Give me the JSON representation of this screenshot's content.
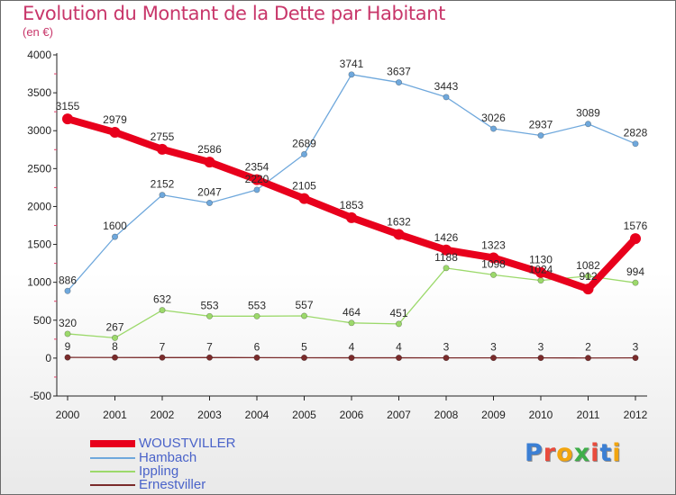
{
  "title": "Evolution du Montant de la Dette par Habitant",
  "subtitle": "(en €)",
  "logo": {
    "text": "Proxiti",
    "letters": [
      "P",
      "r",
      "o",
      "x",
      "i",
      "t",
      "i"
    ],
    "colors": [
      "#3b7fd4",
      "#e94b3c",
      "#f2a50f",
      "#3fae49",
      "#e94b3c",
      "#3b7fd4",
      "#f2a50f"
    ]
  },
  "chart_data": {
    "type": "line",
    "x": [
      "2000",
      "2001",
      "2002",
      "2003",
      "2004",
      "2005",
      "2006",
      "2007",
      "2008",
      "2009",
      "2010",
      "2011",
      "2012"
    ],
    "ylim": [
      -500,
      4000
    ],
    "yticks": [
      -500,
      0,
      500,
      1000,
      1500,
      2000,
      2500,
      3000,
      3500,
      4000
    ],
    "grid": false,
    "legend_position": "bottom-left",
    "series": [
      {
        "name": "WOUSTVILLER",
        "color": "#e8001c",
        "values": [
          3155,
          2979,
          2755,
          2586,
          2354,
          2105,
          1853,
          1632,
          1426,
          1323,
          1130,
          912,
          1576
        ]
      },
      {
        "name": "Hambach",
        "color": "#6fa8dc",
        "values": [
          886,
          1600,
          2152,
          2047,
          2220,
          2689,
          3741,
          3637,
          3443,
          3026,
          2937,
          3089,
          2828
        ]
      },
      {
        "name": "Ippling",
        "color": "#9cd96b",
        "values": [
          320,
          267,
          632,
          553,
          553,
          557,
          464,
          451,
          1188,
          1098,
          1024,
          1082,
          994
        ]
      },
      {
        "name": "Ernestviller",
        "color": "#7a2b2b",
        "values": [
          9,
          8,
          7,
          7,
          6,
          5,
          4,
          4,
          3,
          3,
          3,
          2,
          3
        ]
      }
    ]
  }
}
